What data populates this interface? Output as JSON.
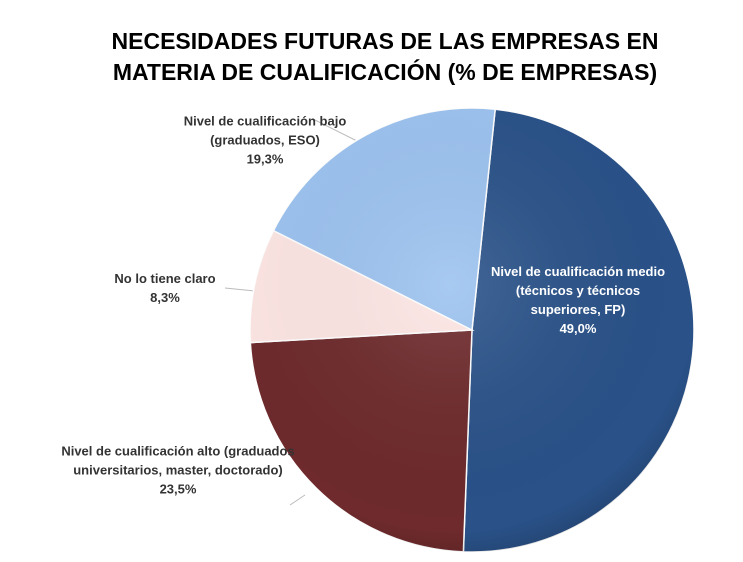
{
  "chart_data": {
    "type": "pie",
    "title": "NECESIDADES FUTURAS DE LAS EMPRESAS EN MATERIA DE CUALIFICACIÓN (% DE EMPRESAS)",
    "categories": [
      "Nivel de cualificación medio (técnicos y técnicos superiores, FP)",
      "Nivel de cualificación alto (graduados universitarios, master, doctorado)",
      "No lo tiene claro",
      "Nivel de cualificación bajo (graduados, ESO)"
    ],
    "values": [
      49.0,
      23.5,
      8.3,
      19.3
    ],
    "value_labels": [
      "49,0%",
      "23,5%",
      "8,3%",
      "19,3%"
    ],
    "colors": [
      "#2a5289",
      "#6e2a2c",
      "#fde6e4",
      "#9cc3f0"
    ]
  }
}
